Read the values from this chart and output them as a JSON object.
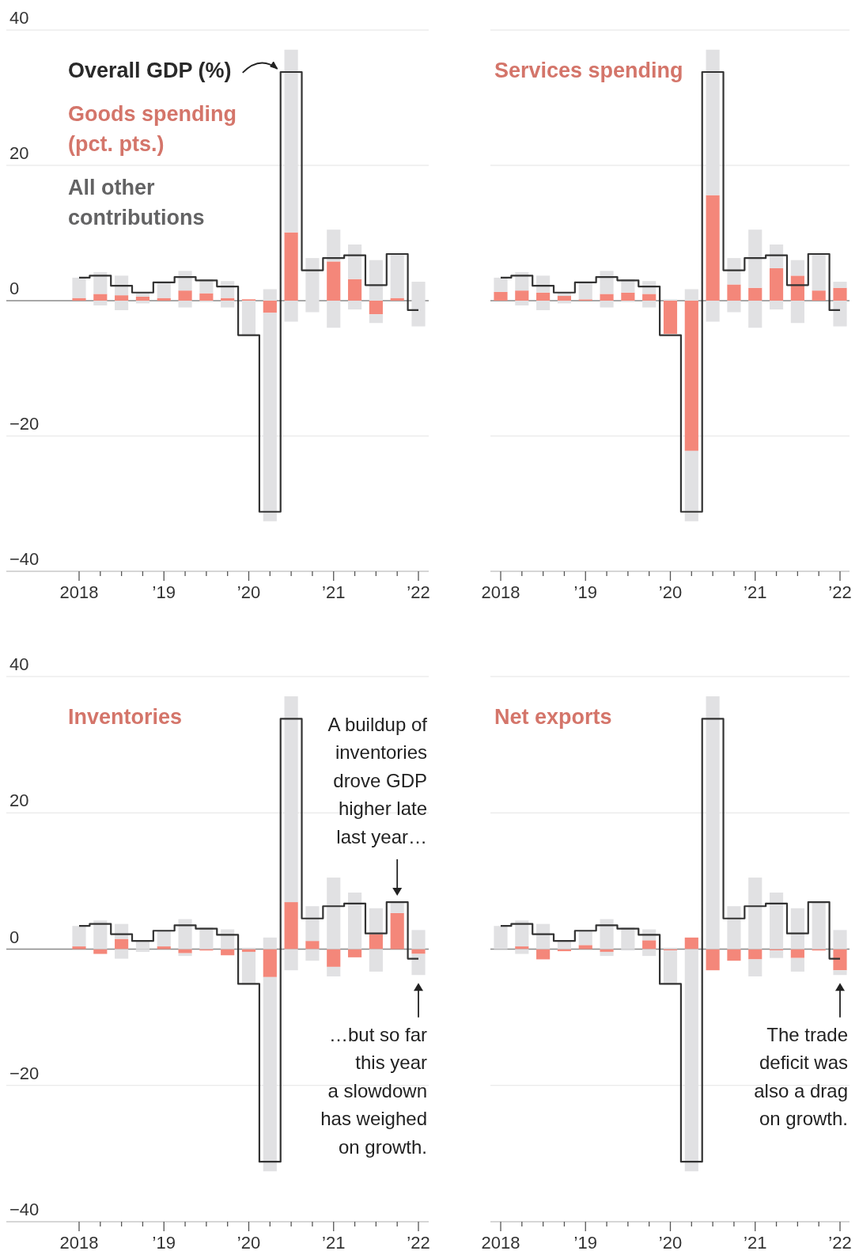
{
  "chart_data": [
    {
      "type": "bar",
      "stacked": true,
      "categories": [
        "2018",
        null,
        null,
        null,
        "’19",
        null,
        null,
        null,
        "’20",
        null,
        null,
        null,
        "’21",
        null,
        null,
        null,
        "’22"
      ],
      "ylim": [
        -40,
        40
      ],
      "yticks": [
        -40,
        -20,
        0,
        20,
        40
      ],
      "grid": "y",
      "legend": "top left",
      "series": [
        {
          "name": "Overall GDP (%)",
          "type": "step",
          "color": "#333333",
          "values": [
            3.4,
            3.7,
            2.2,
            1.2,
            2.7,
            3.5,
            3.0,
            2.1,
            -5.1,
            -31.2,
            33.8,
            4.5,
            6.3,
            6.7,
            2.3,
            6.9,
            -1.4
          ]
        },
        {
          "name": "Goods spending (pct. pts.)",
          "color": "#f4877a",
          "values": [
            0.4,
            1.0,
            0.8,
            0.6,
            0.4,
            1.5,
            1.1,
            0.4,
            0.2,
            -1.8,
            10.1,
            0,
            5.8,
            3.2,
            -2.0,
            0.4,
            0
          ]
        },
        {
          "name": "All other contributions",
          "color": "#e1e1e3",
          "values": [
            3.0,
            3.2,
            2.9,
            0.6,
            2.3,
            2.9,
            2.1,
            2.5,
            0,
            1.7,
            27.0,
            6.3,
            4.7,
            5.1,
            6.0,
            6.5,
            2.8
          ]
        },
        {
          "color": "#e1e1e3",
          "values": [
            0,
            -0.7,
            -1.4,
            -0.4,
            0,
            -1.0,
            -0.2,
            -1.0,
            -5.2,
            -30.8,
            -3.1,
            -1.7,
            -4.0,
            -1.3,
            -1.3,
            0,
            -3.8
          ]
        }
      ]
    },
    {
      "type": "bar",
      "stacked": true,
      "categories": [
        "2018",
        null,
        null,
        null,
        "’19",
        null,
        null,
        null,
        "’20",
        null,
        null,
        null,
        "’21",
        null,
        null,
        null,
        "’22"
      ],
      "ylim": [
        -40,
        40
      ],
      "yticks": [
        -40,
        -20,
        0,
        20,
        40
      ],
      "grid": "y",
      "legend": "top left",
      "tick_labels": "x",
      "series": [
        {
          "type": "step",
          "color": "#333333",
          "values": [
            3.4,
            3.7,
            2.2,
            1.2,
            2.7,
            3.5,
            3.0,
            2.1,
            -5.1,
            -31.2,
            33.8,
            4.5,
            6.3,
            6.7,
            2.3,
            6.9,
            -1.4
          ]
        },
        {
          "name": "Services spending",
          "color": "#f4877a",
          "values": [
            1.3,
            1.5,
            1.2,
            0.7,
            0.2,
            1.0,
            1.2,
            1.0,
            -4.9,
            -22.2,
            15.6,
            2.4,
            1.9,
            4.8,
            3.7,
            1.5,
            1.9
          ]
        },
        {
          "color": "#e1e1e3",
          "values": [
            2.1,
            2.7,
            2.5,
            0.5,
            2.5,
            3.4,
            2.0,
            1.9,
            0.2,
            1.7,
            21.5,
            3.9,
            8.6,
            3.5,
            2.3,
            5.4,
            0.9
          ]
        },
        {
          "color": "#e1e1e3",
          "values": [
            0,
            -0.7,
            -1.4,
            -0.4,
            0,
            -1.0,
            -0.2,
            -1.0,
            null,
            -10.4,
            -3.1,
            -1.7,
            -4.0,
            -1.3,
            -3.3,
            0,
            -3.8
          ]
        }
      ]
    },
    {
      "type": "bar",
      "stacked": true,
      "categories": [
        "2018",
        null,
        null,
        null,
        "’19",
        null,
        null,
        null,
        "’20",
        null,
        null,
        null,
        "’21",
        null,
        null,
        null,
        "’22"
      ],
      "ylim": [
        -40,
        40
      ],
      "yticks": [
        -40,
        -20,
        0,
        20,
        40
      ],
      "grid": "y",
      "legend": "top left",
      "annotations": [
        "A buildup of inventories drove GDP higher late last year…",
        "…but so far this year a slowdown has weighed on growth."
      ],
      "series": [
        {
          "type": "step",
          "color": "#333333",
          "values": [
            3.4,
            3.7,
            2.2,
            1.2,
            2.7,
            3.5,
            3.0,
            2.1,
            -5.1,
            -31.2,
            33.8,
            4.5,
            6.3,
            6.7,
            2.3,
            6.9,
            -1.4
          ]
        },
        {
          "name": "Inventories",
          "color": "#f4877a",
          "values": [
            0.4,
            -0.7,
            1.5,
            0,
            0.4,
            -0.6,
            -0.2,
            -0.9,
            -0.4,
            -4.1,
            6.9,
            1.2,
            -2.6,
            -1.2,
            2.2,
            5.3,
            -0.7
          ]
        },
        {
          "color": "#e1e1e3",
          "values": [
            3.0,
            4.2,
            2.2,
            1.2,
            2.3,
            4.4,
            3.2,
            2.9,
            0.2,
            1.7,
            30.2,
            5.1,
            10.5,
            8.3,
            3.8,
            1.6,
            2.8
          ]
        },
        {
          "color": "#e1e1e3",
          "values": [
            0,
            0,
            -1.4,
            -0.4,
            0,
            -0.4,
            0,
            null,
            -4.8,
            -28.5,
            -3.1,
            -1.7,
            -1.4,
            null,
            -3.3,
            0,
            -3.1
          ]
        }
      ]
    },
    {
      "type": "bar",
      "stacked": true,
      "categories": [
        "2018",
        null,
        null,
        null,
        "’19",
        null,
        null,
        null,
        "’20",
        null,
        null,
        null,
        "’21",
        null,
        null,
        null,
        "’22"
      ],
      "ylim": [
        -40,
        40
      ],
      "yticks": [
        -40,
        -20,
        0,
        20,
        40
      ],
      "grid": "y",
      "legend": "top left",
      "tick_labels": "x",
      "annotations": [
        "The trade deficit was also a drag on growth."
      ],
      "series": [
        {
          "type": "step",
          "color": "#333333",
          "values": [
            3.4,
            3.7,
            2.2,
            1.2,
            2.7,
            3.5,
            3.0,
            2.1,
            -5.1,
            -31.2,
            33.8,
            4.5,
            6.3,
            6.7,
            2.3,
            6.9,
            -1.4
          ]
        },
        {
          "name": "Net exports",
          "color": "#f4877a",
          "values": [
            0,
            0.4,
            -1.5,
            -0.3,
            0.6,
            -0.4,
            0,
            1.3,
            -0.2,
            1.7,
            -3.1,
            -1.7,
            -1.5,
            -0.2,
            -1.3,
            -0.2,
            -3.1
          ]
        },
        {
          "color": "#e1e1e3",
          "values": [
            3.4,
            3.8,
            3.7,
            1.2,
            2.1,
            4.4,
            3.2,
            1.6,
            0.2,
            0,
            37.1,
            6.3,
            10.5,
            8.3,
            6.0,
            6.9,
            2.8
          ]
        },
        {
          "color": "#e1e1e3",
          "values": [
            0,
            -0.7,
            0,
            null,
            0,
            -0.6,
            -0.2,
            -1.0,
            -5.0,
            -32.6,
            0,
            0,
            -2.5,
            -1.1,
            -2.0,
            0,
            -0.7
          ]
        }
      ]
    }
  ]
}
